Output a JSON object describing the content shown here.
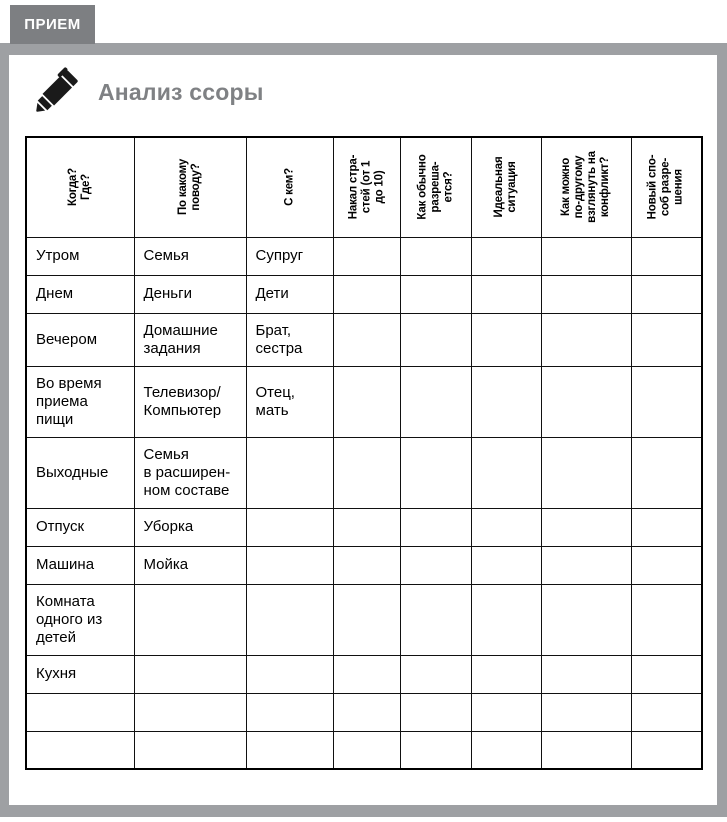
{
  "page": {
    "tab_label": "ПРИЕМ",
    "title": "Анализ ссоры",
    "colors": {
      "tab_bg": "#7d7f82",
      "tab_text": "#ffffff",
      "frame": "#9ea0a3",
      "title": "#7f8184",
      "table_border": "#000000",
      "icon": "#1a1a1a"
    },
    "icons": {
      "title_icon": "pen-icon"
    }
  },
  "table": {
    "columns": [
      "Когда?\nГде?",
      "По какому\nповоду?",
      "С кем?",
      "Накал стра-\nстей (от 1\nдо 10)",
      "Как обычно\nразреша-\nется?",
      "Идеальная\nситуация",
      "Как можно\nпо-другому\nвзглянуть на\nконфликт?",
      "Новый спо-\nсоб разре-\nшения"
    ],
    "rows": [
      [
        "Утром",
        "Семья",
        "Супруг",
        "",
        "",
        "",
        "",
        ""
      ],
      [
        "Днем",
        "Деньги",
        "Дети",
        "",
        "",
        "",
        "",
        ""
      ],
      [
        "Вечером",
        "Домашние\nзадания",
        "Брат,\nсестра",
        "",
        "",
        "",
        "",
        ""
      ],
      [
        "Во время\nприема\nпищи",
        "Телевизор/\nКомпьютер",
        "Отец,\nмать",
        "",
        "",
        "",
        "",
        ""
      ],
      [
        "Выходные",
        "Семья\nв расширен-\nном составе",
        "",
        "",
        "",
        "",
        "",
        ""
      ],
      [
        "Отпуск",
        "Уборка",
        "",
        "",
        "",
        "",
        "",
        ""
      ],
      [
        "Машина",
        "Мойка",
        "",
        "",
        "",
        "",
        "",
        ""
      ],
      [
        "Комната\nодного из\nдетей",
        "",
        "",
        "",
        "",
        "",
        "",
        ""
      ],
      [
        "Кухня",
        "",
        "",
        "",
        "",
        "",
        "",
        ""
      ],
      [
        "",
        "",
        "",
        "",
        "",
        "",
        "",
        ""
      ],
      [
        "",
        "",
        "",
        "",
        "",
        "",
        "",
        ""
      ]
    ]
  }
}
